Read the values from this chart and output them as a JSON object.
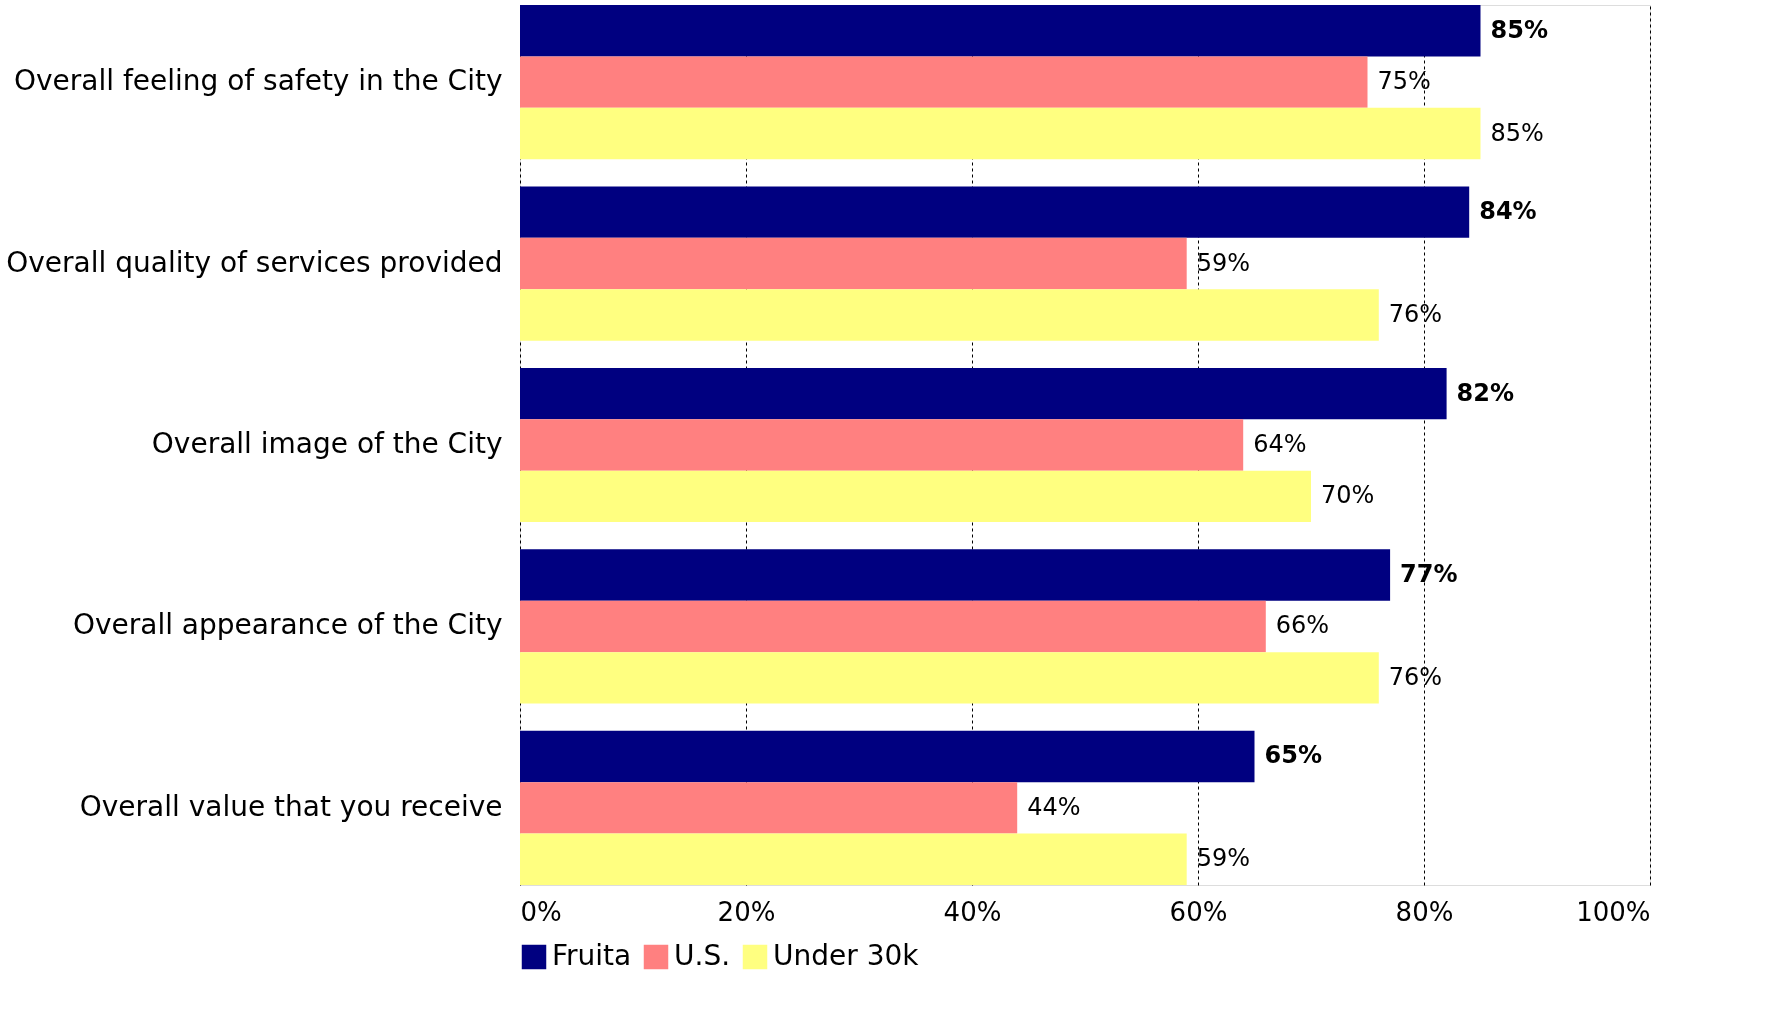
{
  "chart_data": {
    "type": "bar",
    "orientation": "horizontal",
    "categories": [
      "Overall feeling of safety in the City",
      "Overall quality of services provided",
      "Overall image of the City",
      "Overall appearance of the City",
      "Overall value that you receive"
    ],
    "series": [
      {
        "name": "Fruita",
        "color": "#000080",
        "values": [
          85,
          84,
          82,
          77,
          65
        ],
        "value_labels": [
          "85%",
          "84%",
          "82%",
          "77%",
          "65%"
        ]
      },
      {
        "name": "U.S.",
        "color": "#ff8080",
        "values": [
          75,
          59,
          64,
          66,
          44
        ],
        "value_labels": [
          "75%",
          "59%",
          "64%",
          "66%",
          "44%"
        ]
      },
      {
        "name": "Under 30k",
        "color": "#ffff80",
        "values": [
          85,
          76,
          70,
          76,
          59
        ],
        "value_labels": [
          "85%",
          "76%",
          "70%",
          "76%",
          "59%"
        ]
      }
    ],
    "xlim": [
      0,
      100
    ],
    "xticks": [
      {
        "value": 0,
        "label": "0%"
      },
      {
        "value": 20,
        "label": "20%"
      },
      {
        "value": 40,
        "label": "40%"
      },
      {
        "value": 60,
        "label": "60%"
      },
      {
        "value": 80,
        "label": "80%"
      },
      {
        "value": 100,
        "label": "100%"
      }
    ],
    "grid": "x",
    "legend": "bottom"
  }
}
